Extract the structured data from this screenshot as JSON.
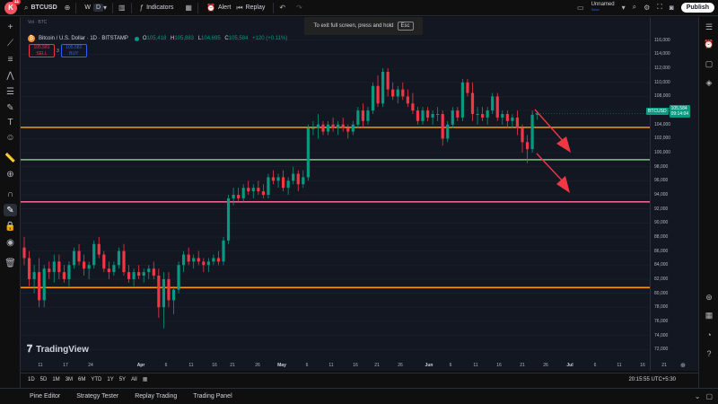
{
  "topbar": {
    "logo_letter": "K",
    "logo_badge": "11",
    "symbol": "BTCUSD",
    "intervals": [
      "W",
      "D"
    ],
    "active_interval": "D",
    "indicators_label": "Indicators",
    "alert_label": "Alert",
    "replay_label": "Replay",
    "layout_name": "Unnamed",
    "layout_status": "Save",
    "publish_label": "Publish"
  },
  "toast": {
    "text": "To exit full screen, press and hold",
    "key": "Esc"
  },
  "legend": {
    "vol_label": "Vol · BTC",
    "title": "Bitcoin / U.S. Dollar · 1D · BITSTAMP",
    "ohlc": [
      {
        "k": "O",
        "v": "105,418"
      },
      {
        "k": "H",
        "v": "105,883"
      },
      {
        "k": "L",
        "v": "104,695"
      },
      {
        "k": "C",
        "v": "105,584"
      }
    ],
    "change": "+120 (+0.11%)",
    "sell_price": "105,581",
    "sell_label": "SELL",
    "spread": "3",
    "buy_price": "105,582",
    "buy_label": "BUY"
  },
  "price_tag": {
    "symbol": "BTCUSD",
    "price": "105,584",
    "countdown": "09:14:04"
  },
  "y_axis": [
    "116,000",
    "114,000",
    "112,000",
    "110,000",
    "108,000",
    "106,000",
    "104,000",
    "102,000",
    "100,000",
    "98,000",
    "96,000",
    "94,000",
    "92,000",
    "90,000",
    "88,000",
    "86,000",
    "84,000",
    "82,000",
    "80,000",
    "78,000",
    "76,000",
    "74,000",
    "72,000"
  ],
  "x_axis": [
    {
      "t": "11"
    },
    {
      "t": "17"
    },
    {
      "t": "24"
    },
    {
      "t": "Apr",
      "m": true
    },
    {
      "t": "6"
    },
    {
      "t": "11"
    },
    {
      "t": "16"
    },
    {
      "t": "21"
    },
    {
      "t": "26"
    },
    {
      "t": "May",
      "m": true
    },
    {
      "t": "6"
    },
    {
      "t": "11"
    },
    {
      "t": "16"
    },
    {
      "t": "21"
    },
    {
      "t": "26"
    },
    {
      "t": "Jun",
      "m": true
    },
    {
      "t": "6"
    },
    {
      "t": "11"
    },
    {
      "t": "16"
    },
    {
      "t": "21"
    },
    {
      "t": "26"
    },
    {
      "t": "Jul",
      "m": true
    },
    {
      "t": "6"
    },
    {
      "t": "11"
    },
    {
      "t": "16"
    },
    {
      "t": "21"
    }
  ],
  "watermark": "TradingView",
  "range_buttons": [
    "1D",
    "5D",
    "1M",
    "3M",
    "6M",
    "YTD",
    "1Y",
    "5Y",
    "All"
  ],
  "clock": "20:15:55 UTC+5:30",
  "bottom_tabs": [
    "Pine Editor",
    "Strategy Tester",
    "Replay Trading",
    "Trading Panel"
  ],
  "colors": {
    "up": "#089981",
    "down": "#f23645",
    "orange_line": "#ff9800",
    "green_line": "#81c784",
    "pink_line": "#f06292",
    "arrow": "#f23645",
    "bg": "#131722"
  },
  "chart_data": {
    "type": "candlestick",
    "y_range": [
      71000,
      117000
    ],
    "horizontal_levels": [
      {
        "price": 103600,
        "color": "orange"
      },
      {
        "price": 99000,
        "color": "green"
      },
      {
        "price": 93000,
        "color": "pink"
      },
      {
        "price": 80800,
        "color": "orange"
      }
    ],
    "candles": [
      [
        86500,
        88000,
        84000,
        85000
      ],
      [
        85000,
        86000,
        81000,
        82000
      ],
      [
        82000,
        84000,
        80000,
        83000
      ],
      [
        83000,
        85000,
        78000,
        79000
      ],
      [
        79000,
        84000,
        78000,
        83500
      ],
      [
        83500,
        84500,
        82000,
        83000
      ],
      [
        83000,
        85500,
        81500,
        84500
      ],
      [
        84500,
        85500,
        82000,
        83000
      ],
      [
        83000,
        84000,
        81500,
        82000
      ],
      [
        82000,
        84500,
        81000,
        84000
      ],
      [
        84000,
        86500,
        83500,
        86000
      ],
      [
        86000,
        87000,
        84000,
        84500
      ],
      [
        84500,
        85500,
        82500,
        83500
      ],
      [
        83500,
        84500,
        82000,
        84000
      ],
      [
        84000,
        87500,
        83500,
        87000
      ],
      [
        87000,
        88000,
        85000,
        85500
      ],
      [
        85500,
        86000,
        83000,
        83500
      ],
      [
        83500,
        84500,
        82000,
        83000
      ],
      [
        83000,
        84500,
        82500,
        84000
      ],
      [
        84000,
        86500,
        83500,
        86000
      ],
      [
        86000,
        87000,
        82500,
        83000
      ],
      [
        83000,
        84000,
        81500,
        82000
      ],
      [
        82000,
        83500,
        81000,
        83000
      ],
      [
        83000,
        84000,
        82000,
        82500
      ],
      [
        82500,
        83500,
        81500,
        83000
      ],
      [
        83000,
        84000,
        82000,
        83500
      ],
      [
        83500,
        84500,
        82000,
        82500
      ],
      [
        82500,
        83500,
        76500,
        78000
      ],
      [
        78000,
        83000,
        75000,
        82000
      ],
      [
        82000,
        83000,
        78000,
        79000
      ],
      [
        79000,
        81000,
        77000,
        80500
      ],
      [
        80500,
        84500,
        80000,
        84000
      ],
      [
        84000,
        86000,
        83000,
        85500
      ],
      [
        85500,
        86500,
        84000,
        84500
      ],
      [
        84500,
        85500,
        83500,
        85000
      ],
      [
        85000,
        86000,
        84000,
        84500
      ],
      [
        84500,
        85000,
        83000,
        84000
      ],
      [
        84000,
        85000,
        83000,
        84500
      ],
      [
        84500,
        85500,
        84000,
        85000
      ],
      [
        85000,
        86000,
        84000,
        84500
      ],
      [
        84500,
        88000,
        84000,
        87500
      ],
      [
        87500,
        94000,
        87000,
        93500
      ],
      [
        93500,
        95000,
        92500,
        94000
      ],
      [
        94000,
        95000,
        93000,
        93500
      ],
      [
        93500,
        95500,
        93000,
        95000
      ],
      [
        95000,
        96000,
        94000,
        94500
      ],
      [
        94500,
        95500,
        93500,
        95000
      ],
      [
        95000,
        96000,
        94000,
        94500
      ],
      [
        94500,
        95500,
        93500,
        94000
      ],
      [
        94000,
        97000,
        93500,
        96500
      ],
      [
        96500,
        97500,
        95500,
        96000
      ],
      [
        96000,
        97000,
        95000,
        96500
      ],
      [
        96500,
        97500,
        94500,
        95000
      ],
      [
        95000,
        96500,
        94000,
        96000
      ],
      [
        96000,
        98000,
        95500,
        97000
      ],
      [
        97000,
        97500,
        94500,
        95500
      ],
      [
        95500,
        97500,
        95000,
        96500
      ],
      [
        96500,
        104000,
        96000,
        103500
      ],
      [
        103500,
        104500,
        102500,
        103500
      ],
      [
        103500,
        105500,
        102000,
        104000
      ],
      [
        104000,
        104500,
        102500,
        103000
      ],
      [
        103000,
        104500,
        102500,
        104000
      ],
      [
        104000,
        105000,
        103000,
        103500
      ],
      [
        103500,
        104500,
        102500,
        104000
      ],
      [
        104000,
        105000,
        103000,
        103500
      ],
      [
        103500,
        104000,
        102000,
        103000
      ],
      [
        103000,
        104500,
        102500,
        104000
      ],
      [
        104000,
        106500,
        103500,
        106000
      ],
      [
        106000,
        107000,
        103500,
        104500
      ],
      [
        104500,
        106500,
        104000,
        106000
      ],
      [
        106000,
        110000,
        105500,
        109500
      ],
      [
        109500,
        111000,
        106500,
        107000
      ],
      [
        107000,
        112000,
        106500,
        111500
      ],
      [
        111500,
        112000,
        108000,
        109000
      ],
      [
        109000,
        110000,
        107500,
        108000
      ],
      [
        108000,
        109500,
        107000,
        109000
      ],
      [
        109000,
        110000,
        107500,
        108000
      ],
      [
        108000,
        109000,
        106500,
        107000
      ],
      [
        107000,
        108500,
        105500,
        106000
      ],
      [
        106000,
        106500,
        104000,
        104500
      ],
      [
        104500,
        106500,
        104000,
        106000
      ],
      [
        106000,
        106500,
        104500,
        105000
      ],
      [
        105000,
        106000,
        104000,
        105500
      ],
      [
        105500,
        106500,
        104500,
        105500
      ],
      [
        105500,
        106000,
        101000,
        102000
      ],
      [
        102000,
        104500,
        101500,
        104000
      ],
      [
        104000,
        106500,
        103500,
        106000
      ],
      [
        106000,
        106500,
        104500,
        105000
      ],
      [
        105000,
        110500,
        104500,
        110000
      ],
      [
        110000,
        110500,
        108000,
        108500
      ],
      [
        108500,
        110000,
        104500,
        105500
      ],
      [
        105500,
        106500,
        104000,
        105500
      ],
      [
        105500,
        106500,
        104500,
        105000
      ],
      [
        105000,
        106500,
        104000,
        106000
      ],
      [
        106000,
        108500,
        105500,
        108000
      ],
      [
        108000,
        108500,
        104500,
        105000
      ],
      [
        105000,
        106000,
        104000,
        105500
      ],
      [
        105500,
        106000,
        103500,
        104500
      ],
      [
        104500,
        105500,
        103500,
        105000
      ],
      [
        105000,
        106000,
        102500,
        103500
      ],
      [
        103500,
        104000,
        100000,
        101500
      ],
      [
        101500,
        102500,
        98500,
        100500
      ],
      [
        100500,
        106000,
        100000,
        105400
      ],
      [
        105400,
        105900,
        104700,
        105600
      ]
    ]
  }
}
